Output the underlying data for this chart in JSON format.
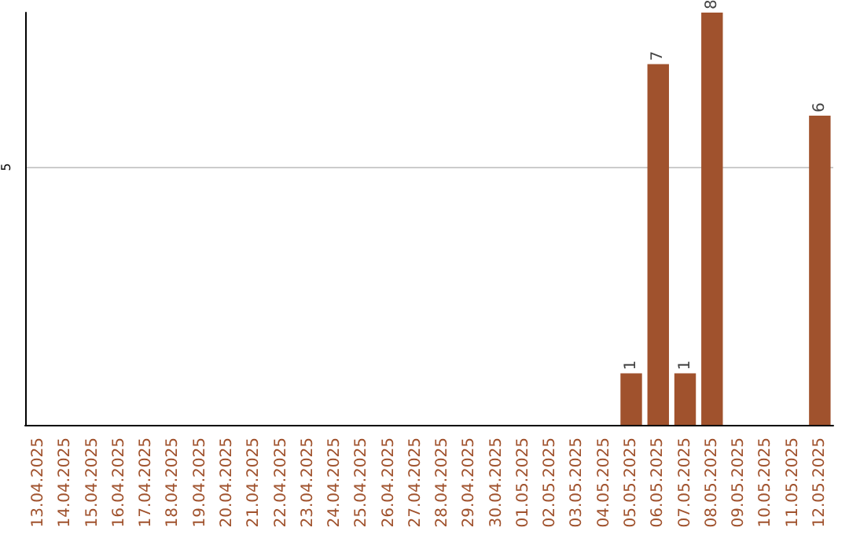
{
  "chart_data": {
    "type": "bar",
    "categories": [
      "13.04.2025",
      "14.04.2025",
      "15.04.2025",
      "16.04.2025",
      "17.04.2025",
      "18.04.2025",
      "19.04.2025",
      "20.04.2025",
      "21.04.2025",
      "22.04.2025",
      "23.04.2025",
      "24.04.2025",
      "25.04.2025",
      "26.04.2025",
      "27.04.2025",
      "28.04.2025",
      "29.04.2025",
      "30.04.2025",
      "01.05.2025",
      "02.05.2025",
      "03.05.2025",
      "04.05.2025",
      "05.05.2025",
      "06.05.2025",
      "07.05.2025",
      "08.05.2025",
      "09.05.2025",
      "10.05.2025",
      "11.05.2025",
      "12.05.2025"
    ],
    "values": [
      null,
      null,
      null,
      null,
      null,
      null,
      null,
      null,
      null,
      null,
      null,
      null,
      null,
      null,
      null,
      null,
      null,
      null,
      null,
      null,
      null,
      null,
      1,
      7,
      1,
      8,
      null,
      null,
      null,
      6
    ],
    "data_labels": true,
    "color": "#a0522d",
    "ylim": [
      0,
      8
    ],
    "yticks": [
      5
    ],
    "grid": "y"
  }
}
